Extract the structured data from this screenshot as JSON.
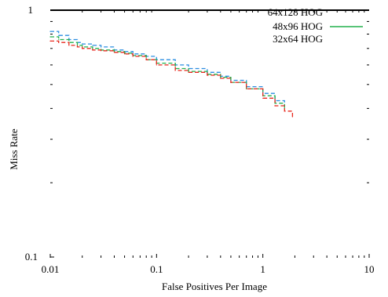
{
  "chart_data": {
    "type": "line",
    "xlabel": "False Positives Per Image",
    "ylabel": "Miss Rate",
    "xscale": "log",
    "yscale": "log",
    "xlim": [
      0.01,
      10
    ],
    "ylim": [
      0.1,
      1
    ],
    "x_tick_labels": [
      "0.01",
      "0.1",
      "1",
      "10"
    ],
    "y_tick_labels": [
      "0.1",
      "1"
    ],
    "legend_position": "top-right",
    "series": [
      {
        "name": "64x128 HOG",
        "color": "#2a8de0",
        "style": "dashed",
        "x": [
          0.01,
          0.012,
          0.015,
          0.018,
          0.02,
          0.025,
          0.03,
          0.04,
          0.05,
          0.06,
          0.08,
          0.1,
          0.15,
          0.2,
          0.3,
          0.4,
          0.5,
          0.7,
          1.0,
          1.3,
          1.6
        ],
        "y": [
          0.82,
          0.79,
          0.76,
          0.74,
          0.73,
          0.72,
          0.71,
          0.69,
          0.68,
          0.665,
          0.65,
          0.63,
          0.6,
          0.58,
          0.56,
          0.54,
          0.52,
          0.49,
          0.46,
          0.43,
          0.41
        ]
      },
      {
        "name": "48x96 HOG",
        "color": "#22b14c",
        "style": "dashed",
        "x": [
          0.01,
          0.012,
          0.015,
          0.018,
          0.02,
          0.025,
          0.03,
          0.04,
          0.05,
          0.06,
          0.08,
          0.1,
          0.15,
          0.2,
          0.3,
          0.4,
          0.5,
          0.7,
          1.0,
          1.3,
          1.6
        ],
        "y": [
          0.78,
          0.76,
          0.74,
          0.72,
          0.71,
          0.7,
          0.69,
          0.68,
          0.67,
          0.655,
          0.63,
          0.61,
          0.58,
          0.565,
          0.55,
          0.535,
          0.51,
          0.48,
          0.45,
          0.42,
          0.4
        ]
      },
      {
        "name": "32x64 HOG",
        "color": "#e8271c",
        "style": "dashed",
        "x": [
          0.01,
          0.012,
          0.015,
          0.018,
          0.02,
          0.025,
          0.03,
          0.04,
          0.05,
          0.06,
          0.08,
          0.1,
          0.15,
          0.2,
          0.3,
          0.4,
          0.5,
          0.7,
          1.0,
          1.3,
          1.6,
          1.9
        ],
        "y": [
          0.75,
          0.74,
          0.72,
          0.71,
          0.7,
          0.69,
          0.685,
          0.675,
          0.665,
          0.65,
          0.63,
          0.6,
          0.57,
          0.56,
          0.545,
          0.53,
          0.51,
          0.48,
          0.44,
          0.41,
          0.39,
          0.37
        ]
      }
    ]
  }
}
